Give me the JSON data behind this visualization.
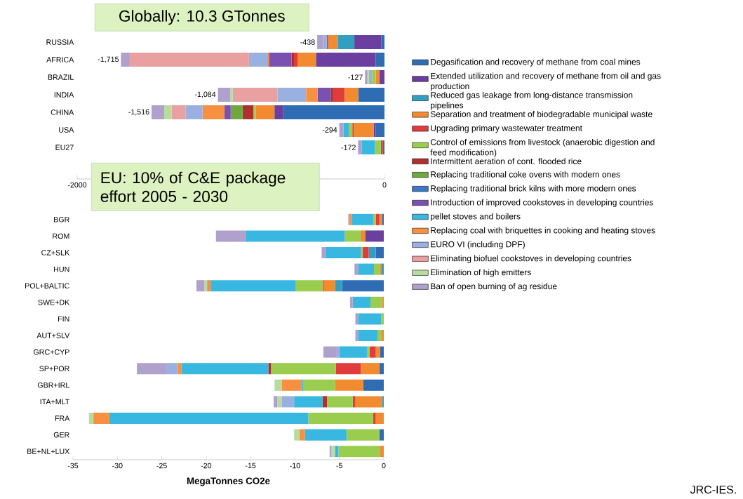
{
  "chart_data": [
    {
      "type": "bar",
      "orientation": "horizontal",
      "stacked": true,
      "title": "Globally: 10.3 GTonnes",
      "categories": [
        "RUSSIA",
        "AFRICA",
        "BRAZIL",
        "INDIA",
        "CHINA",
        "USA",
        "EU27"
      ],
      "xlim": [
        -2000,
        0
      ],
      "xticks": [
        -2000,
        0
      ],
      "legend": "right",
      "totals": [
        "-438",
        "-1,715",
        "-127",
        "-1,084",
        "-1,516",
        "-294",
        "-172"
      ],
      "series": [
        {
          "name": "Degasification and recovery of methane from coal mines",
          "color": "#2e6db4",
          "values": [
            -21,
            -57,
            null,
            -171,
            -659,
            -57,
            -11
          ]
        },
        {
          "name": "Extended utilization and recovery of methane from oil and gas production",
          "color": "#6b3fa0",
          "values": [
            -175,
            -389,
            -33,
            null,
            -57,
            -13,
            null
          ]
        },
        {
          "name": "Reduced gas leakage from long-distance transmission pipelines",
          "color": "#31a0c0",
          "values": [
            -106,
            null,
            null,
            null,
            null,
            null,
            null
          ]
        },
        {
          "name": "Separation and treatment of biodegradable municipal waste",
          "color": "#f28a30",
          "values": [
            -65,
            -118,
            -24,
            -90,
            -122,
            -131,
            null
          ]
        },
        {
          "name": "Upgrading primary  wastewater treatment",
          "color": "#e03c3c",
          "values": [
            -8,
            -25,
            null,
            -73,
            null,
            -8,
            -13
          ]
        },
        {
          "name": "Control of emissions from livestock (anaerobic digestion and feed modification)",
          "color": "#9acd4e",
          "values": [
            null,
            null,
            -24,
            null,
            -16,
            -24,
            -38
          ]
        },
        {
          "name": "Intermittent aeration of cont. flooded rice",
          "color": "#b03030",
          "values": [
            null,
            -16,
            null,
            -16,
            -69,
            null,
            null
          ]
        },
        {
          "name": "Replacing traditional coke ovens with modern ones",
          "color": "#6fa840",
          "values": [
            null,
            null,
            null,
            null,
            -78,
            null,
            null
          ]
        },
        {
          "name": "Replacing traditional brick kilns with more modern ones",
          "color": "#3c78c8",
          "values": [
            null,
            null,
            null,
            null,
            null,
            null,
            null
          ]
        },
        {
          "name": "Introduction of improved cookstoves in developing countries",
          "color": "#7a50b0",
          "values": [
            null,
            -147,
            null,
            -85,
            -41,
            null,
            null
          ]
        },
        {
          "name": "pellet stoves and boilers",
          "color": "#38b8e0",
          "values": [
            null,
            null,
            null,
            null,
            null,
            -33,
            -85
          ]
        },
        {
          "name": "Replacing coal with briquettes in cooking and heating stoves",
          "color": "#f79040",
          "values": [
            null,
            -11,
            null,
            -75,
            -142,
            null,
            null
          ]
        },
        {
          "name": "EURO VI (including DPF)",
          "color": "#9ab0e0",
          "values": [
            -25,
            -119,
            -20,
            -186,
            -111,
            null,
            null
          ]
        },
        {
          "name": "Eliminating biofuel cookstoves in developing countries",
          "color": "#e8a0a0",
          "values": [
            null,
            -776,
            null,
            -291,
            -90,
            null,
            null
          ]
        },
        {
          "name": "Elimination of high emitters",
          "color": "#b8dca0",
          "values": [
            null,
            null,
            -10,
            -16,
            -49,
            null,
            null
          ]
        },
        {
          "name": "Ban of open burning of ag residue",
          "color": "#b0a0cc",
          "values": [
            -38,
            -57,
            -16,
            -81,
            -82,
            -28,
            -25
          ]
        }
      ]
    },
    {
      "type": "bar",
      "orientation": "horizontal",
      "stacked": true,
      "title": "EU: 10% of C&E package effort 2005 - 2030",
      "xlabel": "MegaTonnes CO2e",
      "categories": [
        "BGR",
        "ROM",
        "CZ+SLK",
        "HUN",
        "POL+BALTIC",
        "SWE+DK",
        "FIN",
        "AUT+SLV",
        "GRC+CYP",
        "SP+POR",
        "GBR+IRL",
        "ITA+MLT",
        "FRA",
        "GER",
        "BE+NL+LUX"
      ],
      "xlim": [
        -35,
        0
      ],
      "xticks": [
        -35,
        -30,
        -25,
        -20,
        -15,
        -10,
        -5,
        0
      ],
      "annotations": [
        "JRC-IES."
      ],
      "series": [
        {
          "color": "#2e6db4",
          "values": [
            -0.2,
            null,
            -0.9,
            null,
            -4.7,
            null,
            null,
            null,
            -0.4,
            -0.5,
            -2.3,
            null,
            null,
            -0.5,
            null
          ]
        },
        {
          "color": "#6b3fa0",
          "values": [
            null,
            -2.1,
            null,
            null,
            null,
            null,
            null,
            null,
            null,
            null,
            null,
            null,
            null,
            null,
            null
          ]
        },
        {
          "color": "#31a0c0",
          "values": [
            null,
            null,
            -0.8,
            -0.3,
            -0.8,
            null,
            null,
            null,
            null,
            null,
            null,
            -0.2,
            null,
            null,
            null
          ]
        },
        {
          "color": "#f28a30",
          "values": [
            -0.3,
            -0.5,
            null,
            -0.1,
            -1.3,
            -0.2,
            null,
            -0.3,
            -0.5,
            -2.1,
            -3.2,
            -3.0,
            -0.9,
            null,
            -0.4
          ]
        },
        {
          "color": "#e03c3c",
          "values": [
            -0.4,
            null,
            -0.7,
            null,
            -0.1,
            null,
            null,
            null,
            -0.7,
            -2.8,
            null,
            -0.3,
            -0.3,
            null,
            null
          ]
        },
        {
          "color": "#9acd4e",
          "values": [
            -0.3,
            -1.8,
            -0.2,
            -0.7,
            -3.0,
            -1.3,
            -0.3,
            -0.4,
            -0.3,
            -7.3,
            -3.6,
            -2.9,
            -7.3,
            -3.7,
            -4.7
          ]
        },
        {
          "color": "#b03030",
          "values": [
            null,
            null,
            null,
            null,
            null,
            null,
            null,
            null,
            null,
            -0.3,
            null,
            -0.5,
            null,
            null,
            null
          ]
        },
        {
          "color": "#6fa840",
          "values": [
            null,
            null,
            null,
            null,
            null,
            null,
            null,
            null,
            null,
            null,
            null,
            null,
            null,
            null,
            null
          ]
        },
        {
          "color": "#3c78c8",
          "values": [
            null,
            null,
            null,
            null,
            null,
            null,
            null,
            null,
            null,
            null,
            null,
            null,
            null,
            null,
            null
          ]
        },
        {
          "color": "#7a50b0",
          "values": [
            null,
            null,
            null,
            null,
            null,
            null,
            null,
            null,
            null,
            null,
            null,
            null,
            null,
            null,
            null
          ]
        },
        {
          "color": "#38b8e0",
          "values": [
            -2.4,
            -11.2,
            -4.0,
            -1.8,
            -9.6,
            -2.0,
            -2.6,
            -2.2,
            -3.1,
            -9.8,
            -0.2,
            -3.2,
            -22.4,
            -4.7,
            -0.4
          ]
        },
        {
          "color": "#f79040",
          "values": [
            -0.3,
            null,
            null,
            null,
            -0.4,
            null,
            null,
            null,
            null,
            -0.4,
            -2.2,
            null,
            -1.8,
            -0.6,
            null
          ]
        },
        {
          "color": "#9ab0e0",
          "values": [
            null,
            null,
            null,
            null,
            null,
            null,
            null,
            null,
            -0.3,
            -1.3,
            null,
            -1.4,
            null,
            null,
            null
          ]
        },
        {
          "color": "#e8a0a0",
          "values": [
            null,
            null,
            null,
            null,
            null,
            null,
            null,
            null,
            null,
            null,
            null,
            null,
            null,
            null,
            null
          ]
        },
        {
          "color": "#b8dca0",
          "values": [
            null,
            null,
            null,
            null,
            -0.3,
            null,
            null,
            null,
            null,
            null,
            -0.8,
            -0.5,
            -0.5,
            -0.6,
            -0.4
          ]
        },
        {
          "color": "#b0a0cc",
          "values": [
            -0.1,
            -3.3,
            -0.4,
            -0.4,
            -0.9,
            -0.3,
            -0.3,
            -0.3,
            -1.5,
            -3.3,
            null,
            -0.4,
            null,
            null,
            -0.2
          ]
        }
      ]
    }
  ]
}
